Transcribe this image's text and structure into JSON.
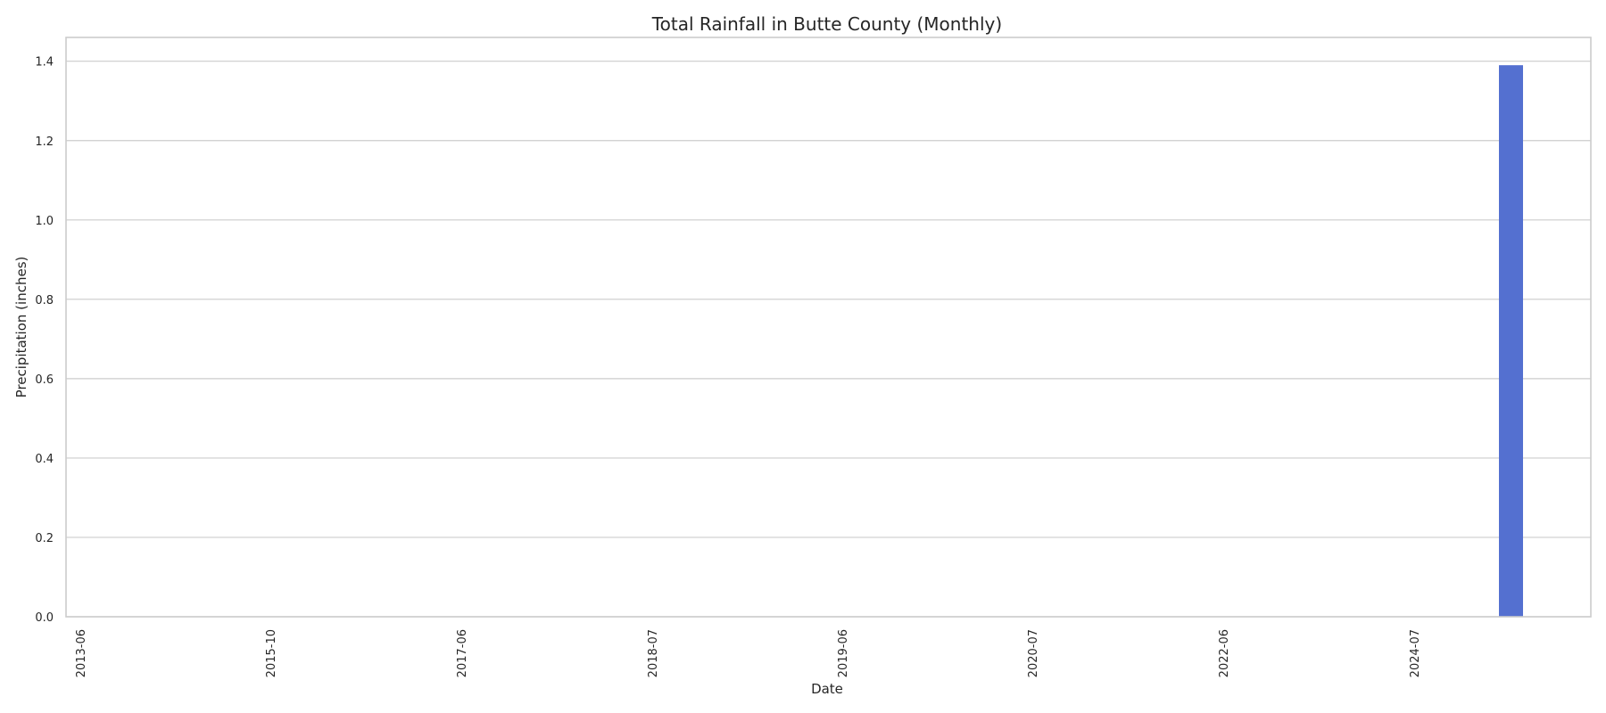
{
  "chart_data": {
    "type": "bar",
    "title": "Total Rainfall in Butte County (Monthly)",
    "xlabel": "Date",
    "ylabel": "Precipitation (inches)",
    "ylim": [
      0,
      1.46
    ],
    "yticks": [
      0.0,
      0.2,
      0.4,
      0.6,
      0.8,
      1.0,
      1.2,
      1.4
    ],
    "ytick_labels": [
      "0.0",
      "0.2",
      "0.4",
      "0.6",
      "0.8",
      "1.0",
      "1.2",
      "1.4"
    ],
    "xtick_labels": [
      "2013-06",
      "2015-10",
      "2017-06",
      "2018-07",
      "2019-06",
      "2020-07",
      "2022-06",
      "2024-07"
    ],
    "grid": "horizontal",
    "bar_color": "#5470d0",
    "bars": [
      {
        "category": "after 2024-07",
        "value": 1.39
      }
    ]
  }
}
